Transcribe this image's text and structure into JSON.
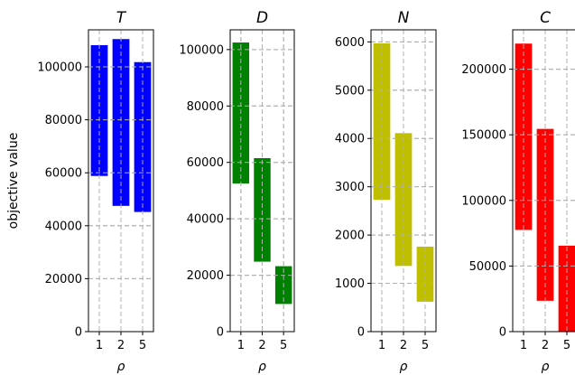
{
  "ylabel": "objective value",
  "chart_data": [
    {
      "type": "bar",
      "title": "T",
      "xlabel": "ρ",
      "categories": [
        "1",
        "2",
        "5"
      ],
      "ranges": [
        [
          58800,
          108200
        ],
        [
          47500,
          110500
        ],
        [
          45200,
          101800
        ]
      ],
      "ylim": [
        0,
        114000
      ],
      "yticks": [
        0,
        20000,
        40000,
        60000,
        80000,
        100000
      ],
      "color": "#0000ff",
      "grid": true
    },
    {
      "type": "bar",
      "title": "D",
      "xlabel": "ρ",
      "categories": [
        "1",
        "2",
        "5"
      ],
      "ranges": [
        [
          52500,
          102500
        ],
        [
          24800,
          61500
        ],
        [
          9800,
          23200
        ]
      ],
      "ylim": [
        0,
        107000
      ],
      "yticks": [
        0,
        20000,
        40000,
        60000,
        80000,
        100000
      ],
      "color": "#008000",
      "grid": true
    },
    {
      "type": "bar",
      "title": "N",
      "xlabel": "ρ",
      "categories": [
        "1",
        "2",
        "5"
      ],
      "ranges": [
        [
          2730,
          5970
        ],
        [
          1360,
          4110
        ],
        [
          620,
          1760
        ]
      ],
      "ylim": [
        0,
        6250
      ],
      "yticks": [
        0,
        1000,
        2000,
        3000,
        4000,
        5000,
        6000
      ],
      "color": "#bfbf00",
      "grid": true
    },
    {
      "type": "bar",
      "title": "C",
      "xlabel": "ρ",
      "categories": [
        "1",
        "2",
        "5"
      ],
      "ranges": [
        [
          77500,
          219500
        ],
        [
          23500,
          154500
        ],
        [
          0,
          65500
        ]
      ],
      "ylim": [
        0,
        230000
      ],
      "yticks": [
        0,
        50000,
        100000,
        150000,
        200000
      ],
      "color": "#ff0000",
      "grid": true
    }
  ]
}
